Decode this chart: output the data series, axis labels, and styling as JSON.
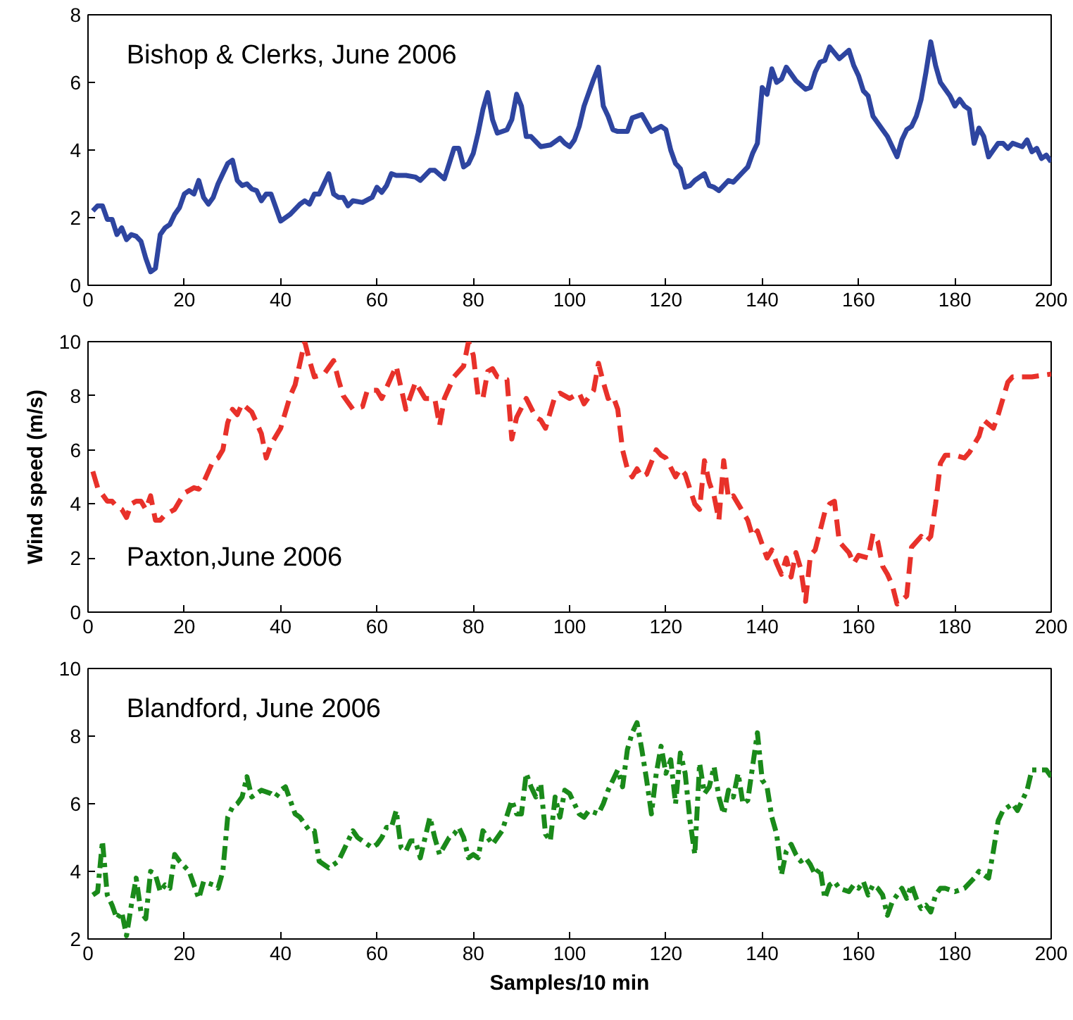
{
  "chart_data": [
    {
      "type": "line",
      "title": "Bishop & Clerks, June 2006",
      "xlim": [
        0,
        200
      ],
      "xticks": [
        0,
        20,
        40,
        60,
        80,
        100,
        120,
        140,
        160,
        180,
        200
      ],
      "ylim": [
        0,
        8
      ],
      "yticks": [
        0,
        2,
        4,
        6,
        8
      ],
      "grid": false,
      "series": [
        {
          "color": "#2e45a0",
          "line_style": "solid",
          "x": [
            1,
            2,
            3,
            4,
            5,
            6,
            7,
            8,
            9,
            10,
            11,
            12,
            13,
            14,
            15,
            16,
            17,
            18,
            19,
            20,
            21,
            22,
            23,
            24,
            25,
            26,
            27,
            28,
            29,
            30,
            31,
            32,
            33,
            34,
            35,
            36,
            37,
            38,
            40,
            42,
            44,
            45,
            46,
            47,
            48,
            49,
            50,
            51,
            52,
            53,
            54,
            55,
            57,
            59,
            60,
            61,
            62,
            63,
            64,
            66,
            68,
            69,
            71,
            72,
            74,
            75,
            76,
            77,
            78,
            79,
            80,
            81,
            82,
            83,
            84,
            85,
            87,
            88,
            89,
            90,
            91,
            92,
            93,
            94,
            96,
            98,
            99,
            100,
            101,
            102,
            103,
            104,
            105,
            106,
            107,
            108,
            109,
            110,
            112,
            113,
            115,
            117,
            119,
            120,
            121,
            122,
            123,
            124,
            125,
            126,
            128,
            129,
            130,
            131,
            132,
            133,
            134,
            136,
            137,
            138,
            139,
            140,
            141,
            142,
            143,
            144,
            145,
            147,
            149,
            150,
            151,
            152,
            153,
            154,
            156,
            158,
            159,
            160,
            161,
            162,
            163,
            165,
            166,
            167,
            168,
            169,
            170,
            171,
            172,
            173,
            174,
            175,
            176,
            177,
            178,
            179,
            180,
            181,
            182,
            183,
            184,
            185,
            186,
            187,
            188,
            189,
            190,
            191,
            192,
            194,
            195,
            196,
            197,
            198,
            199,
            200
          ],
          "values": [
            2.2,
            2.35,
            2.35,
            1.95,
            1.95,
            1.5,
            1.7,
            1.35,
            1.5,
            1.45,
            1.3,
            0.8,
            0.4,
            0.5,
            1.5,
            1.7,
            1.8,
            2.1,
            2.3,
            2.7,
            2.8,
            2.7,
            3.1,
            2.6,
            2.4,
            2.6,
            3.0,
            3.3,
            3.6,
            3.7,
            3.1,
            2.95,
            3.0,
            2.85,
            2.8,
            2.5,
            2.7,
            2.7,
            1.9,
            2.1,
            2.4,
            2.5,
            2.4,
            2.7,
            2.7,
            3.0,
            3.3,
            2.7,
            2.6,
            2.6,
            2.35,
            2.5,
            2.45,
            2.6,
            2.9,
            2.75,
            2.95,
            3.3,
            3.25,
            3.25,
            3.2,
            3.1,
            3.4,
            3.4,
            3.15,
            3.6,
            4.05,
            4.05,
            3.5,
            3.6,
            3.9,
            4.5,
            5.2,
            5.7,
            4.9,
            4.5,
            4.6,
            4.9,
            5.65,
            5.3,
            4.4,
            4.4,
            4.25,
            4.1,
            4.15,
            4.35,
            4.2,
            4.1,
            4.3,
            4.7,
            5.3,
            5.7,
            6.1,
            6.45,
            5.3,
            5.0,
            4.6,
            4.55,
            4.55,
            4.95,
            5.05,
            4.55,
            4.7,
            4.6,
            4.0,
            3.6,
            3.45,
            2.9,
            2.95,
            3.1,
            3.3,
            2.95,
            2.9,
            2.8,
            2.95,
            3.1,
            3.05,
            3.35,
            3.5,
            3.9,
            4.2,
            5.85,
            5.65,
            6.4,
            6.0,
            6.1,
            6.45,
            6.05,
            5.8,
            5.85,
            6.3,
            6.6,
            6.65,
            7.05,
            6.7,
            6.95,
            6.5,
            6.2,
            5.75,
            5.6,
            5.0,
            4.6,
            4.4,
            4.1,
            3.8,
            4.3,
            4.6,
            4.7,
            5.0,
            5.5,
            6.3,
            7.2,
            6.5,
            6.0,
            5.8,
            5.6,
            5.3,
            5.5,
            5.3,
            5.2,
            4.2,
            4.65,
            4.4,
            3.8,
            4.0,
            4.2,
            4.2,
            4.05,
            4.2,
            4.1,
            4.3,
            3.95,
            4.05,
            3.75,
            3.85,
            3.65
          ]
        }
      ]
    },
    {
      "type": "line",
      "title": "Paxton,June 2006",
      "ylabel": "Wind speed (m/s)",
      "xlim": [
        0,
        200
      ],
      "xticks": [
        0,
        20,
        40,
        60,
        80,
        100,
        120,
        140,
        160,
        180,
        200
      ],
      "ylim": [
        0,
        10
      ],
      "yticks": [
        0,
        2,
        4,
        6,
        8,
        10
      ],
      "grid": false,
      "series": [
        {
          "color": "#e8312a",
          "line_style": "dashed",
          "x": [
            1,
            2,
            4,
            5,
            6,
            7,
            8,
            9,
            10,
            11,
            12,
            13,
            14,
            15,
            16,
            18,
            20,
            22,
            23,
            24,
            26,
            27,
            28,
            29,
            30,
            31,
            32,
            34,
            36,
            37,
            38,
            40,
            42,
            43,
            44,
            45,
            46,
            47,
            49,
            51,
            52,
            53,
            55,
            57,
            58,
            60,
            61,
            63,
            64,
            65,
            66,
            67,
            68,
            70,
            72,
            73,
            74,
            76,
            78,
            79,
            80,
            81,
            82,
            83,
            84,
            85,
            87,
            88,
            89,
            91,
            93,
            94,
            95,
            97,
            98,
            100,
            101,
            102,
            103,
            105,
            106,
            107,
            108,
            109,
            110,
            111,
            112,
            113,
            114,
            115,
            116,
            118,
            119,
            120,
            122,
            123,
            124,
            126,
            127,
            128,
            129,
            130,
            131,
            132,
            133,
            134,
            135,
            137,
            138,
            139,
            141,
            142,
            143,
            144,
            145,
            146,
            147,
            148,
            149,
            150,
            151,
            152,
            153,
            154,
            155,
            156,
            158,
            159,
            160,
            162,
            163,
            164,
            165,
            166,
            167,
            168,
            170,
            171,
            173,
            174,
            175,
            176,
            177,
            178,
            180,
            182,
            183,
            185,
            186,
            188,
            189,
            191,
            192,
            194,
            196,
            200
          ],
          "values": [
            5.2,
            4.6,
            4.1,
            4.1,
            3.9,
            3.8,
            3.5,
            4.0,
            4.1,
            4.1,
            3.8,
            4.3,
            3.4,
            3.4,
            3.6,
            3.8,
            4.4,
            4.6,
            4.55,
            4.8,
            5.6,
            5.7,
            6.0,
            7.0,
            7.5,
            7.3,
            7.7,
            7.4,
            6.6,
            5.7,
            6.2,
            6.8,
            8.0,
            8.4,
            9.2,
            10.0,
            9.3,
            8.7,
            8.8,
            9.3,
            8.6,
            8.0,
            7.5,
            7.6,
            8.2,
            8.2,
            7.9,
            8.7,
            9.1,
            8.3,
            7.5,
            8.0,
            8.5,
            7.9,
            7.9,
            6.9,
            7.9,
            8.7,
            9.1,
            10.0,
            9.5,
            8.0,
            7.9,
            8.9,
            9.0,
            8.7,
            8.6,
            6.4,
            7.2,
            7.9,
            7.2,
            7.1,
            6.8,
            8.0,
            8.1,
            7.9,
            8.0,
            8.1,
            7.7,
            8.2,
            9.2,
            8.5,
            7.9,
            8.0,
            7.5,
            6.0,
            5.3,
            5.0,
            5.3,
            5.0,
            5.1,
            6.0,
            5.8,
            5.7,
            5.0,
            5.3,
            5.1,
            4.0,
            3.8,
            5.6,
            4.8,
            4.3,
            3.4,
            5.6,
            4.2,
            4.3,
            4.0,
            3.4,
            2.8,
            3.0,
            2.0,
            2.3,
            1.8,
            1.4,
            2.0,
            1.3,
            2.2,
            1.6,
            0.4,
            2.1,
            2.3,
            3.0,
            3.7,
            4.0,
            4.1,
            2.6,
            2.2,
            1.8,
            2.1,
            2.0,
            2.9,
            2.6,
            1.7,
            1.4,
            1.0,
            0.3,
            0.6,
            2.4,
            2.8,
            2.6,
            2.8,
            4.0,
            5.5,
            5.8,
            5.8,
            5.7,
            5.9,
            6.5,
            7.1,
            6.8,
            7.3,
            8.5,
            8.7,
            8.7,
            8.7,
            8.8
          ]
        }
      ]
    },
    {
      "type": "line",
      "title": "Blandford, June 2006",
      "xlabel": "Samples/10 min",
      "xlim": [
        0,
        200
      ],
      "xticks": [
        0,
        20,
        40,
        60,
        80,
        100,
        120,
        140,
        160,
        180,
        200
      ],
      "ylim": [
        2,
        10
      ],
      "yticks": [
        2,
        4,
        6,
        8,
        10
      ],
      "grid": false,
      "series": [
        {
          "color": "#1a8a1a",
          "line_style": "dashdot",
          "x": [
            1,
            2,
            3,
            4,
            5,
            6,
            7,
            8,
            9,
            10,
            11,
            12,
            13,
            14,
            15,
            16,
            17,
            18,
            19,
            21,
            22,
            23,
            24,
            26,
            27,
            28,
            29,
            30,
            31,
            32,
            33,
            34,
            35,
            36,
            38,
            39,
            40,
            41,
            43,
            44,
            46,
            47,
            48,
            50,
            52,
            53,
            55,
            56,
            57,
            58,
            59,
            60,
            61,
            62,
            63,
            64,
            65,
            66,
            67,
            68,
            69,
            70,
            71,
            72,
            73,
            75,
            76,
            77,
            78,
            79,
            80,
            81,
            82,
            83,
            84,
            85,
            86,
            88,
            89,
            90,
            91,
            92,
            93,
            94,
            95,
            96,
            97,
            98,
            99,
            100,
            101,
            102,
            103,
            104,
            106,
            107,
            108,
            109,
            110,
            111,
            112,
            113,
            114,
            115,
            116,
            117,
            118,
            119,
            120,
            121,
            122,
            123,
            124,
            125,
            126,
            127,
            128,
            129,
            130,
            131,
            132,
            133,
            134,
            135,
            136,
            137,
            138,
            139,
            140,
            141,
            142,
            143,
            144,
            145,
            146,
            147,
            148,
            149,
            150,
            151,
            152,
            153,
            154,
            155,
            156,
            158,
            159,
            160,
            161,
            162,
            163,
            164,
            165,
            166,
            167,
            168,
            169,
            170,
            171,
            172,
            173,
            174,
            175,
            176,
            177,
            178,
            180,
            182,
            184,
            185,
            186,
            187,
            188,
            189,
            190,
            192,
            193,
            194,
            195,
            196,
            197,
            198,
            199,
            200
          ],
          "values": [
            3.3,
            3.4,
            4.9,
            3.3,
            3.0,
            2.6,
            2.8,
            2.1,
            3.0,
            3.8,
            2.8,
            2.6,
            4.0,
            3.9,
            3.4,
            3.6,
            3.5,
            4.5,
            4.3,
            4.0,
            3.6,
            3.2,
            3.7,
            3.6,
            3.5,
            4.0,
            5.6,
            5.9,
            6.0,
            6.2,
            6.8,
            6.2,
            6.3,
            6.4,
            6.3,
            6.2,
            6.4,
            6.5,
            5.7,
            5.6,
            5.2,
            5.2,
            4.3,
            4.1,
            4.3,
            4.6,
            5.2,
            5.0,
            4.9,
            4.8,
            4.7,
            4.8,
            5.0,
            5.3,
            5.3,
            5.8,
            4.7,
            4.6,
            4.9,
            4.9,
            4.4,
            5.0,
            5.6,
            5.0,
            4.5,
            5.0,
            5.1,
            5.3,
            5.0,
            4.4,
            4.5,
            4.4,
            5.2,
            5.0,
            4.8,
            5.0,
            5.2,
            6.1,
            5.7,
            5.7,
            6.9,
            6.5,
            6.2,
            6.6,
            5.1,
            4.9,
            6.2,
            5.6,
            6.4,
            6.3,
            6.0,
            5.7,
            5.6,
            5.8,
            5.7,
            6.0,
            6.4,
            6.7,
            7.0,
            6.5,
            7.6,
            8.1,
            8.4,
            7.6,
            6.7,
            5.7,
            6.9,
            7.7,
            6.9,
            7.3,
            6.0,
            7.5,
            6.9,
            5.5,
            4.5,
            7.2,
            6.3,
            6.5,
            7.1,
            6.2,
            5.7,
            6.4,
            6.2,
            6.9,
            6.0,
            6.1,
            7.1,
            8.1,
            6.7,
            6.5,
            5.6,
            5.1,
            3.9,
            4.6,
            4.8,
            4.5,
            4.3,
            4.4,
            4.2,
            3.9,
            4.1,
            3.2,
            3.6,
            3.7,
            3.5,
            3.4,
            3.6,
            3.5,
            3.7,
            3.3,
            3.6,
            3.5,
            3.3,
            2.7,
            3.1,
            3.3,
            3.5,
            3.2,
            3.6,
            3.2,
            2.9,
            3.0,
            2.8,
            3.3,
            3.5,
            3.5,
            3.4,
            3.5,
            3.8,
            4.0,
            3.9,
            3.8,
            4.6,
            5.5,
            5.8,
            6.0,
            5.8,
            6.1,
            6.4,
            7.0,
            7.0,
            7.0,
            7.0,
            6.8
          ]
        }
      ]
    }
  ]
}
